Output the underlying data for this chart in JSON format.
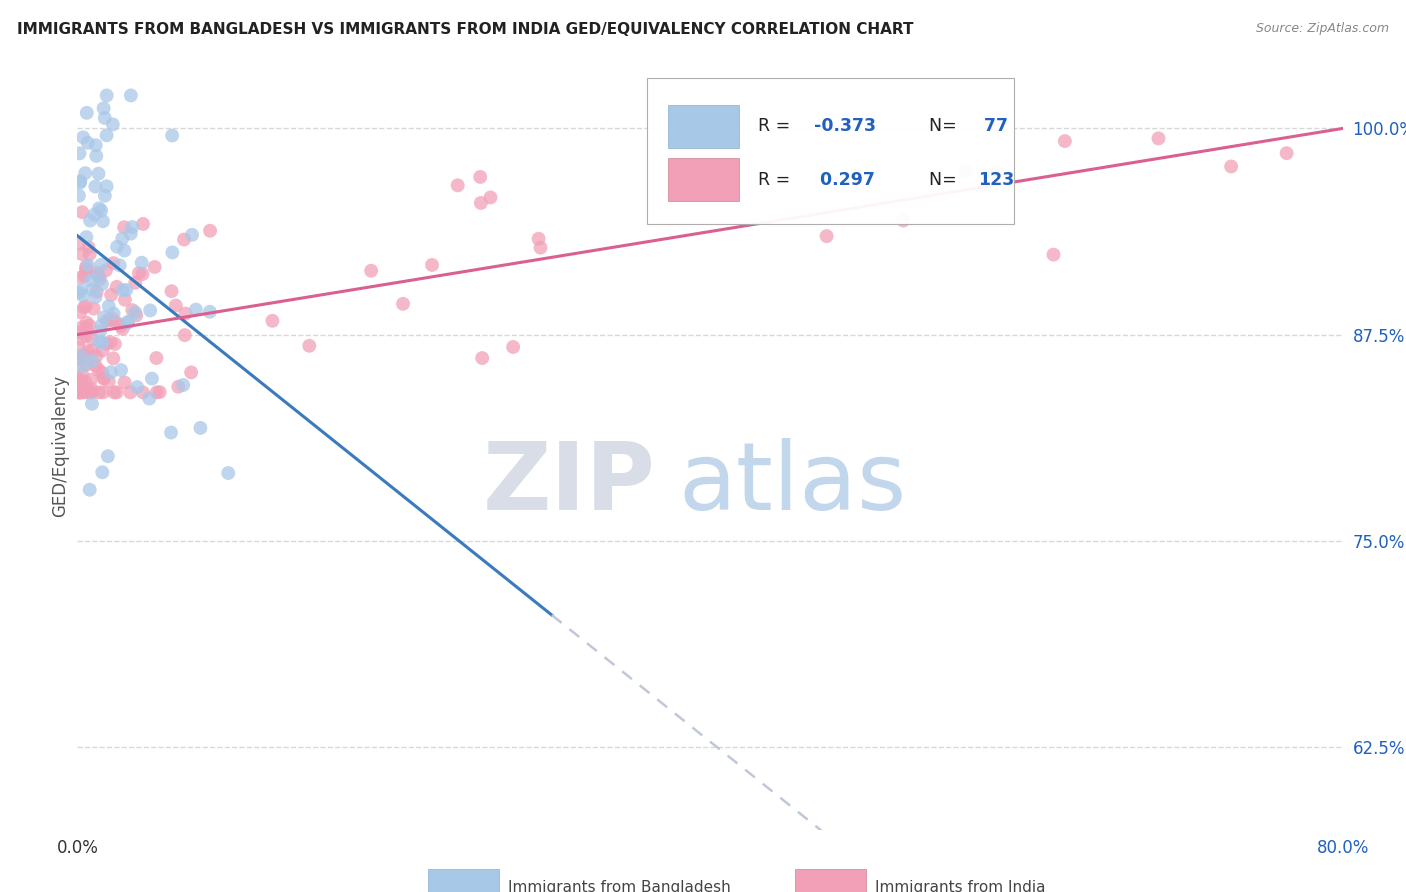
{
  "title": "IMMIGRANTS FROM BANGLADESH VS IMMIGRANTS FROM INDIA GED/EQUIVALENCY CORRELATION CHART",
  "source": "Source: ZipAtlas.com",
  "ylabel": "GED/Equivalency",
  "yticks": [
    0.625,
    0.75,
    0.875,
    1.0
  ],
  "ytick_labels": [
    "62.5%",
    "75.0%",
    "87.5%",
    "100.0%"
  ],
  "xlim": [
    0.0,
    0.8
  ],
  "ylim": [
    0.575,
    1.04
  ],
  "legend_label1": "Immigrants from Bangladesh",
  "legend_label2": "Immigrants from India",
  "color_bangladesh": "#a8c8e8",
  "color_india": "#f2a0b8",
  "trendline_bangladesh_color": "#3a7abf",
  "trendline_india_color": "#d96090",
  "trendline_dashed_color": "#c0c8d8",
  "watermark_zip": "ZIP",
  "watermark_atlas": "atlas",
  "bg_color": "#ffffff",
  "grid_color": "#d8d8d8",
  "title_fontsize": 11,
  "r1": "-0.373",
  "n1": "77",
  "r2": "0.297",
  "n2": "123",
  "r_color": "#2060c0",
  "n_color": "#2060c0",
  "bang_trend_x0": 0.0,
  "bang_trend_x1": 0.3,
  "bang_trend_y0": 0.935,
  "bang_trend_y1": 0.705,
  "india_trend_x0": 0.0,
  "india_trend_x1": 0.8,
  "india_trend_y0": 0.875,
  "india_trend_y1": 1.0
}
